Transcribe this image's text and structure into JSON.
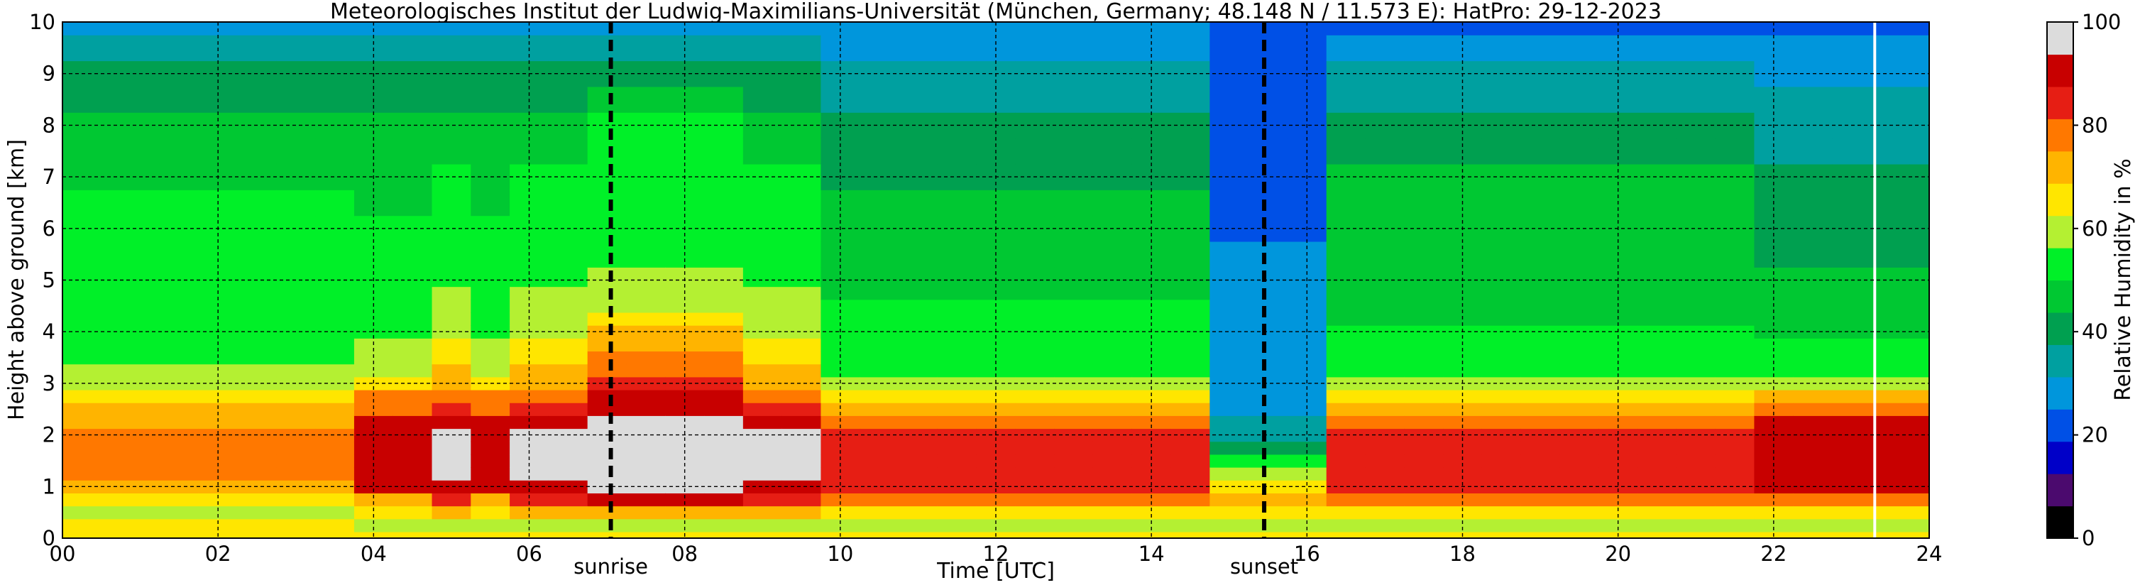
{
  "chart_data": {
    "type": "heatmap",
    "title": "Meteorologisches Institut der Ludwig-Maximilians-Universität (München, Germany; 48.148 N / 11.573 E):    HatPro: 29-12-2023",
    "xlabel": "Time [UTC]",
    "ylabel": "Height above ground [km]",
    "colorbar_label": "Relative Humidity in %",
    "xlim": [
      0,
      24
    ],
    "ylim": [
      0,
      10
    ],
    "clim": [
      0,
      100
    ],
    "x_tick_labels": [
      "00",
      "02",
      "04",
      "06",
      "08",
      "10",
      "12",
      "14",
      "16",
      "18",
      "20",
      "22",
      "24"
    ],
    "y_tick_labels": [
      "0",
      "1",
      "2",
      "3",
      "4",
      "5",
      "6",
      "7",
      "8",
      "9",
      "10"
    ],
    "colorbar_tick_labels": [
      "0",
      "20",
      "40",
      "60",
      "80",
      "100"
    ],
    "grid": true,
    "events": [
      {
        "label": "sunrise",
        "time": 7.05
      },
      {
        "label": "sunset",
        "time": 15.45
      }
    ],
    "missing_data_line_time": 23.3,
    "colormap": [
      "#000000",
      "#4b0a6e",
      "#0000c8",
      "#0050e6",
      "#0096dc",
      "#00a0a0",
      "#00a050",
      "#00c832",
      "#00f028",
      "#b4f032",
      "#ffe600",
      "#ffb400",
      "#ff7800",
      "#e61e14",
      "#c80000",
      "#dcdcdc"
    ],
    "time_hours": [
      0,
      0.5,
      1,
      1.5,
      2,
      2.5,
      3,
      3.5,
      4,
      4.5,
      5,
      5.5,
      6,
      6.5,
      7,
      7.5,
      8,
      8.5,
      9,
      9.5,
      10,
      10.5,
      11,
      11.5,
      12,
      12.5,
      13,
      13.5,
      14,
      14.5,
      15,
      15.5,
      16,
      16.5,
      17,
      17.5,
      18,
      18.5,
      19,
      19.5,
      20,
      20.5,
      21,
      21.5,
      22,
      22.5,
      23,
      23.5,
      24
    ],
    "heights_km": [
      0,
      0.25,
      0.5,
      0.75,
      1,
      1.25,
      1.5,
      1.75,
      2,
      2.25,
      2.5,
      2.75,
      3,
      3.25,
      3.5,
      3.75,
      4,
      4.25,
      4.5,
      4.75,
      5,
      5.5,
      6,
      6.5,
      7,
      7.5,
      8,
      8.5,
      9,
      9.5,
      10
    ],
    "rh_profiles": {
      "low_night": [
        68,
        64,
        60,
        67,
        74,
        76,
        77,
        77,
        76,
        74,
        70,
        67,
        62,
        57,
        55,
        55,
        55,
        55,
        55,
        55,
        55,
        53,
        52,
        50,
        49,
        47,
        46,
        42,
        38,
        35,
        28
      ],
      "moist": [
        68,
        62,
        63,
        74,
        89,
        92,
        93,
        93,
        92,
        88,
        80,
        76,
        68,
        62,
        58,
        57,
        56,
        55,
        55,
        54,
        54,
        52,
        50,
        49,
        48,
        48,
        46,
        42,
        38,
        35,
        26
      ],
      "very_moist": [
        66,
        62,
        70,
        86,
        93,
        94,
        95,
        95,
        94,
        92,
        86,
        80,
        74,
        70,
        67,
        64,
        62,
        59,
        58,
        57,
        56,
        54,
        53,
        52,
        52,
        48,
        46,
        42,
        38,
        35,
        28
      ],
      "morning_peak": [
        66,
        62,
        72,
        92,
        94,
        95,
        95,
        95,
        95,
        94,
        92,
        88,
        82,
        78,
        76,
        74,
        70,
        66,
        62,
        60,
        58,
        56,
        55,
        54,
        54,
        53,
        52,
        44,
        40,
        35,
        27
      ],
      "afternoon": [
        65,
        60,
        65,
        76,
        82,
        83,
        84,
        83,
        82,
        78,
        74,
        68,
        60,
        55,
        53,
        52,
        51,
        50,
        50,
        49,
        48,
        46,
        45,
        44,
        42,
        40,
        38,
        36,
        34,
        30,
        25
      ],
      "dry_evening": [
        66,
        62,
        65,
        70,
        68,
        60,
        50,
        42,
        36,
        32,
        28,
        26,
        25,
        25,
        25,
        25,
        25,
        25,
        25,
        25,
        25,
        25,
        24,
        24,
        24,
        24,
        24,
        24,
        24,
        22,
        19
      ],
      "evening": [
        66,
        62,
        66,
        76,
        82,
        83,
        83,
        83,
        82,
        78,
        74,
        66,
        58,
        54,
        52,
        51,
        50,
        49,
        48,
        48,
        47,
        46,
        46,
        46,
        45,
        43,
        40,
        37,
        34,
        30,
        24
      ],
      "late_night": [
        64,
        60,
        66,
        80,
        90,
        92,
        93,
        93,
        92,
        88,
        78,
        70,
        62,
        56,
        53,
        50,
        48,
        46,
        45,
        44,
        44,
        43,
        42,
        40,
        38,
        36,
        34,
        32,
        30,
        27,
        22
      ]
    },
    "profile_sequence": [
      "low_night",
      "low_night",
      "low_night",
      "low_night",
      "low_night",
      "low_night",
      "low_night",
      "low_night",
      "moist",
      "moist",
      "very_moist",
      "moist",
      "very_moist",
      "very_moist",
      "morning_peak",
      "morning_peak",
      "morning_peak",
      "morning_peak",
      "very_moist",
      "very_moist",
      "afternoon",
      "afternoon",
      "afternoon",
      "afternoon",
      "afternoon",
      "afternoon",
      "afternoon",
      "afternoon",
      "afternoon",
      "afternoon",
      "dry_evening",
      "dry_evening",
      "dry_evening",
      "evening",
      "evening",
      "evening",
      "evening",
      "evening",
      "evening",
      "evening",
      "evening",
      "evening",
      "evening",
      "evening",
      "late_night",
      "late_night",
      "late_night",
      "late_night",
      "late_night"
    ]
  }
}
